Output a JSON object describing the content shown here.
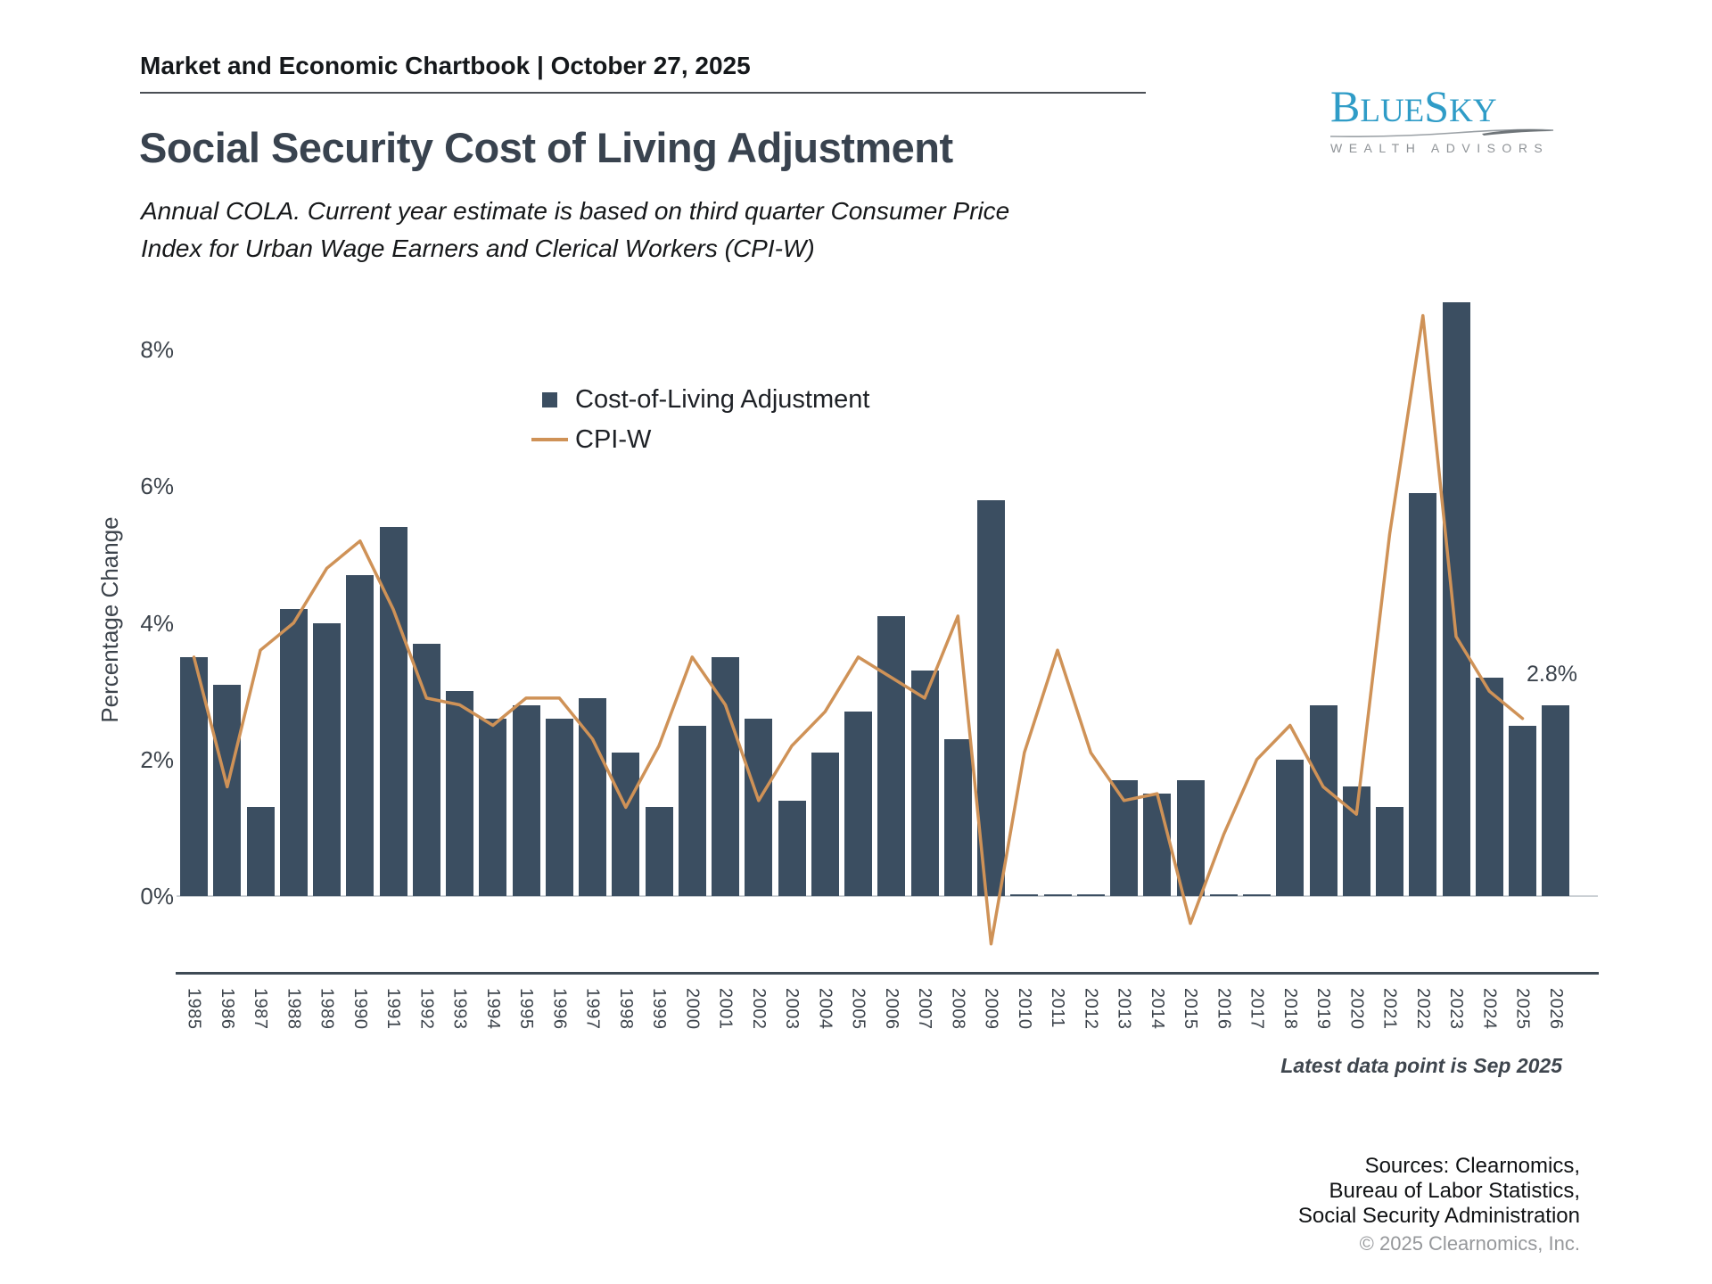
{
  "header": {
    "text": "Market and Economic Chartbook | October 27, 2025"
  },
  "title": "Social Security Cost of Living Adjustment",
  "subtitle": {
    "line1": "Annual COLA. Current year estimate is based on third quarter Consumer Price",
    "line2": "Index for Urban Wage Earners and Clerical Workers (CPI-W)"
  },
  "logo": {
    "b": "B",
    "lue": "LUE",
    "s": "S",
    "ky": "KY",
    "tagline": "WEALTH ADVISORS"
  },
  "chart_data": {
    "type": "bar+line",
    "title": "Social Security Cost of Living Adjustment",
    "ylabel": "Percentage Change",
    "yticks": {
      "labels": [
        "0%",
        "2%",
        "4%",
        "6%",
        "8%"
      ],
      "values": [
        0,
        2,
        4,
        6,
        8
      ]
    },
    "ylim": [
      -1.1,
      8.8
    ],
    "grid": false,
    "legend_position": "upper-left-inside",
    "categories": [
      1985,
      1986,
      1987,
      1988,
      1989,
      1990,
      1991,
      1992,
      1993,
      1994,
      1995,
      1996,
      1997,
      1998,
      1999,
      2000,
      2001,
      2002,
      2003,
      2004,
      2005,
      2006,
      2007,
      2008,
      2009,
      2010,
      2011,
      2012,
      2013,
      2014,
      2015,
      2016,
      2017,
      2018,
      2019,
      2020,
      2021,
      2022,
      2023,
      2024,
      2025,
      2026
    ],
    "series": [
      {
        "name": "Cost-of-Living Adjustment",
        "type": "bar",
        "color": "#3B4E61",
        "values": [
          3.5,
          3.1,
          1.3,
          4.2,
          4.0,
          4.7,
          5.4,
          3.7,
          3.0,
          2.6,
          2.8,
          2.6,
          2.9,
          2.1,
          1.3,
          2.5,
          3.5,
          2.6,
          1.4,
          2.1,
          2.7,
          4.1,
          3.3,
          2.3,
          5.8,
          0,
          0,
          0,
          1.7,
          1.5,
          1.7,
          0,
          0,
          2.0,
          2.8,
          1.6,
          1.3,
          5.9,
          8.7,
          3.2,
          2.5,
          2.8
        ]
      },
      {
        "name": "CPI-W",
        "type": "line",
        "color": "#CF9257",
        "values": [
          3.5,
          1.6,
          3.6,
          4.0,
          4.8,
          5.2,
          4.2,
          2.9,
          2.8,
          2.5,
          2.9,
          2.9,
          2.3,
          1.3,
          2.2,
          3.5,
          2.8,
          1.4,
          2.2,
          2.7,
          3.5,
          3.2,
          2.9,
          4.1,
          -0.7,
          2.1,
          3.6,
          2.1,
          1.4,
          1.5,
          -0.4,
          0.9,
          2.0,
          2.5,
          1.6,
          1.2,
          5.3,
          8.5,
          3.8,
          3.0,
          2.6,
          null
        ]
      }
    ],
    "annotation": {
      "text": "2.8%",
      "year": 2026,
      "value": 2.8
    }
  },
  "footer": {
    "latest_note": "Latest data point is Sep 2025",
    "sources_line1": "Sources: Clearnomics,",
    "sources_line2": "Bureau of Labor Statistics,",
    "sources_line3": "Social Security Administration",
    "copyright": "© 2025 Clearnomics, Inc."
  }
}
